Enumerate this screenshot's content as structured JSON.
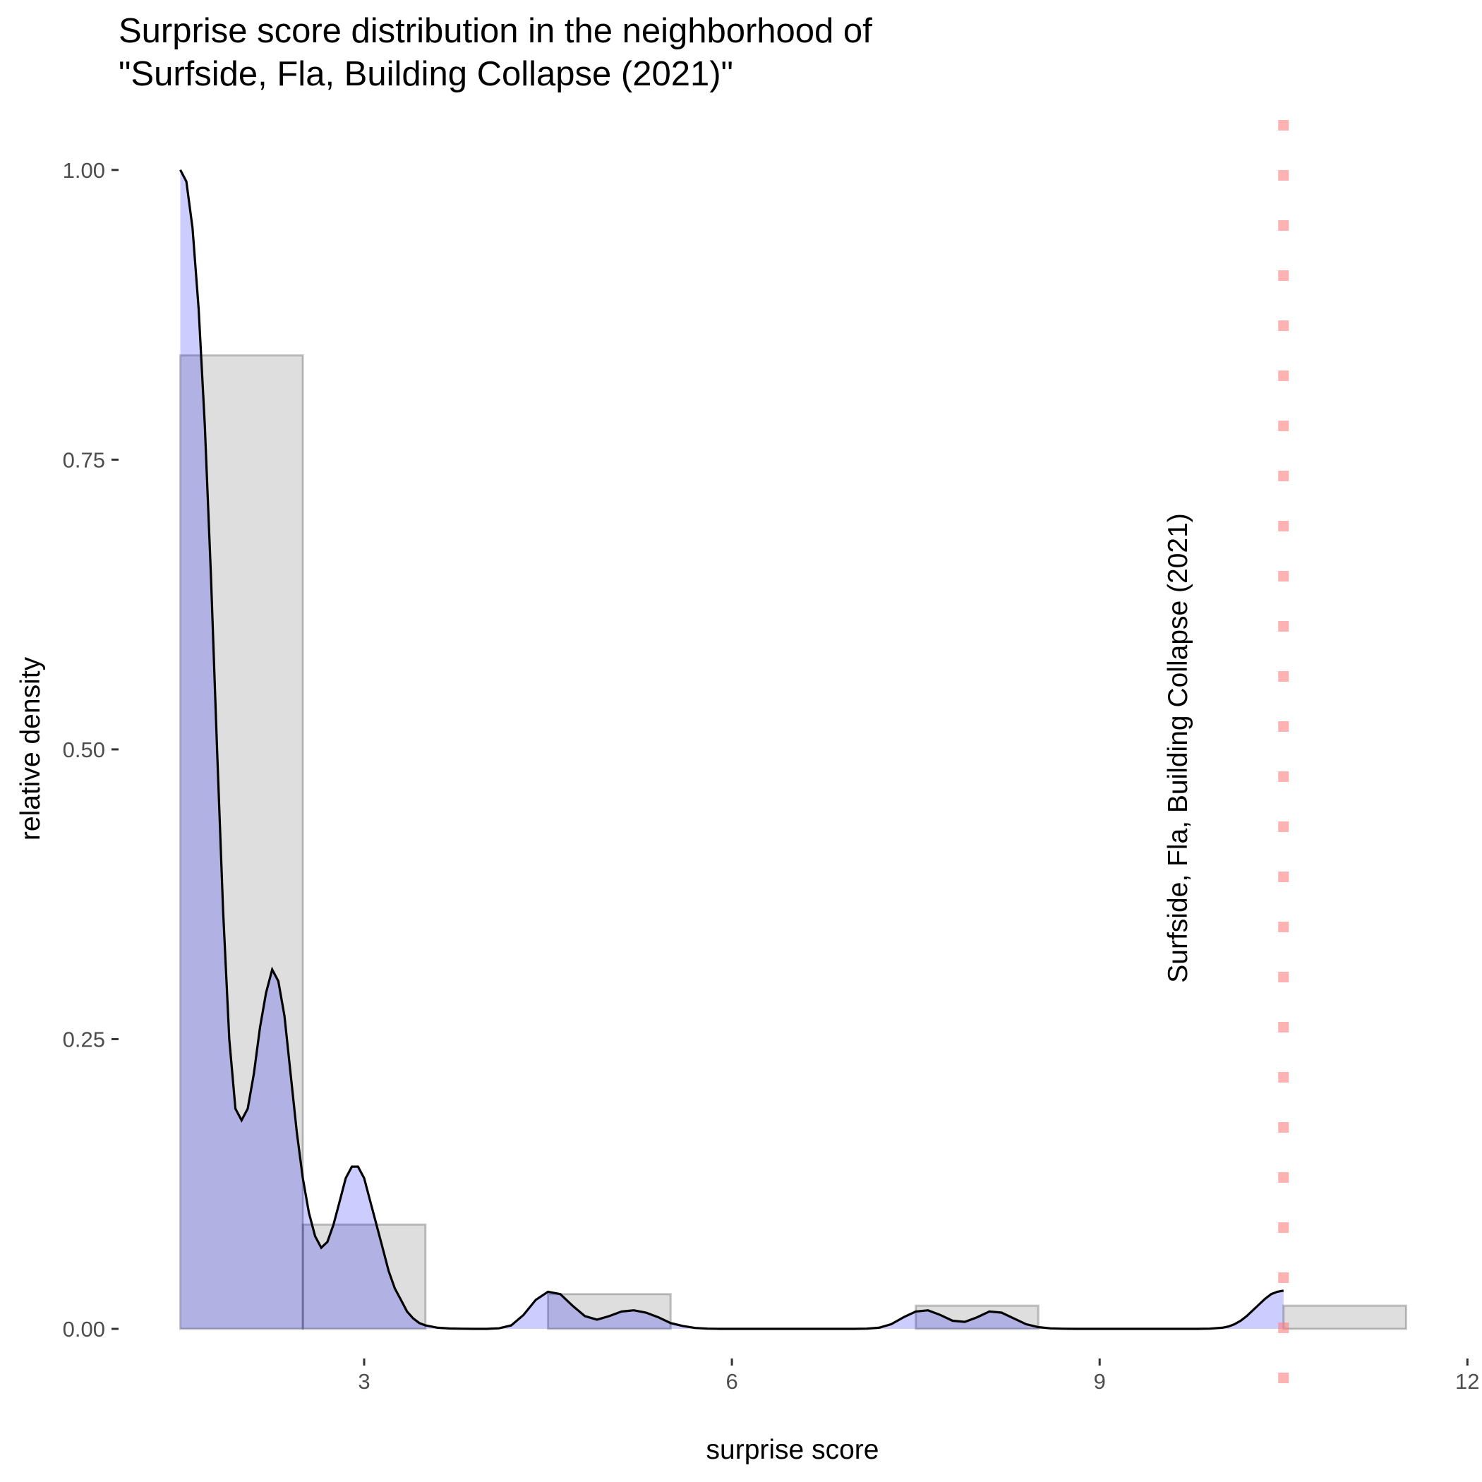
{
  "chart_data": {
    "type": "histogram-density",
    "title": [
      "Surprise score distribution in the neighborhood of",
      "\"Surfside, Fla, Building Collapse (2021)\""
    ],
    "xlabel": "surprise score",
    "ylabel": "relative density",
    "xlim": [
      1.0,
      12.0
    ],
    "ylim": [
      0.0,
      1.0
    ],
    "x_ticks": [
      3,
      6,
      9,
      12
    ],
    "x_tick_labels": [
      "3",
      "6",
      "9",
      "12"
    ],
    "y_ticks": [
      0,
      0.25,
      0.5,
      0.75,
      1.0
    ],
    "y_tick_labels": [
      "0.00",
      "0.25",
      "0.50",
      "0.75",
      "1.00"
    ],
    "histogram": {
      "bin_width": 1.0,
      "bins": [
        {
          "x0": 1.5,
          "x1": 2.5,
          "value": 0.84
        },
        {
          "x0": 2.5,
          "x1": 3.5,
          "value": 0.09
        },
        {
          "x0": 4.5,
          "x1": 5.5,
          "value": 0.03
        },
        {
          "x0": 7.5,
          "x1": 8.5,
          "value": 0.02
        },
        {
          "x0": 10.5,
          "x1": 11.5,
          "value": 0.02
        }
      ]
    },
    "density": {
      "x": [
        1.5,
        1.55,
        1.6,
        1.65,
        1.7,
        1.75,
        1.8,
        1.85,
        1.9,
        1.95,
        2.0,
        2.05,
        2.1,
        2.15,
        2.2,
        2.25,
        2.3,
        2.35,
        2.4,
        2.45,
        2.5,
        2.55,
        2.6,
        2.65,
        2.7,
        2.75,
        2.8,
        2.85,
        2.9,
        2.95,
        3.0,
        3.05,
        3.1,
        3.15,
        3.2,
        3.25,
        3.3,
        3.35,
        3.4,
        3.45,
        3.5,
        3.6,
        3.7,
        3.8,
        3.9,
        4.0,
        4.1,
        4.2,
        4.3,
        4.4,
        4.5,
        4.6,
        4.7,
        4.8,
        4.9,
        5.0,
        5.1,
        5.2,
        5.3,
        5.4,
        5.5,
        5.6,
        5.7,
        5.8,
        5.9,
        6.0,
        6.5,
        7.0,
        7.1,
        7.2,
        7.3,
        7.4,
        7.5,
        7.6,
        7.7,
        7.8,
        7.9,
        8.0,
        8.1,
        8.2,
        8.3,
        8.4,
        8.5,
        8.6,
        8.7,
        8.8,
        8.9,
        9.0,
        9.5,
        9.8,
        9.9,
        10.0,
        10.05,
        10.1,
        10.15,
        10.2,
        10.25,
        10.3,
        10.35,
        10.4,
        10.45,
        10.5
      ],
      "y": [
        1.0,
        0.99,
        0.95,
        0.88,
        0.78,
        0.65,
        0.5,
        0.36,
        0.25,
        0.19,
        0.18,
        0.19,
        0.22,
        0.26,
        0.29,
        0.31,
        0.3,
        0.27,
        0.22,
        0.17,
        0.13,
        0.1,
        0.08,
        0.07,
        0.075,
        0.09,
        0.11,
        0.13,
        0.14,
        0.14,
        0.13,
        0.11,
        0.09,
        0.07,
        0.05,
        0.035,
        0.025,
        0.015,
        0.009,
        0.005,
        0.003,
        0.001,
        0.0003,
        0.0001,
        0.0,
        0.0,
        0.0005,
        0.003,
        0.012,
        0.025,
        0.032,
        0.03,
        0.02,
        0.011,
        0.008,
        0.011,
        0.015,
        0.016,
        0.014,
        0.01,
        0.005,
        0.0025,
        0.0008,
        0.0002,
        0.0,
        0.0,
        0.0,
        0.0,
        0.0002,
        0.001,
        0.004,
        0.01,
        0.015,
        0.016,
        0.012,
        0.007,
        0.006,
        0.01,
        0.015,
        0.014,
        0.009,
        0.004,
        0.0015,
        0.0004,
        0.0001,
        0.0,
        0.0,
        0.0,
        0.0,
        0.0,
        0.0002,
        0.001,
        0.002,
        0.004,
        0.007,
        0.011,
        0.016,
        0.021,
        0.026,
        0.03,
        0.032,
        0.033
      ]
    },
    "reference_line": {
      "x": 10.5,
      "label": "Surfside, Fla, Building Collapse (2021)",
      "color": "#ff7f7f"
    },
    "colors": {
      "density_fill": "#0000ff",
      "bar_fill": "#dfdfdf",
      "line": "#000000"
    }
  }
}
